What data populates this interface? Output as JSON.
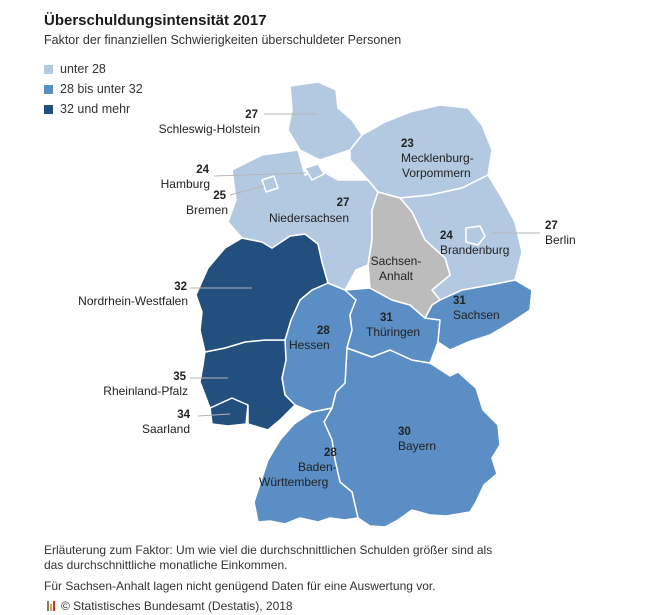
{
  "title": "Überschuldungsintensität 2017",
  "subtitle": "Faktor der finanziellen Schwierigkeiten überschuldeter Personen",
  "legend": [
    {
      "label": "unter 28",
      "color": "#b3c9e1"
    },
    {
      "label": "28 bis unter 32",
      "color": "#5b8ec4"
    },
    {
      "label": "32 und mehr",
      "color": "#234f7f"
    }
  ],
  "no_data_color": "#bcbcbc",
  "states": {
    "sh": {
      "name": "Schleswig-Holstein",
      "value": "27"
    },
    "hh": {
      "name": "Hamburg",
      "value": "24"
    },
    "hb": {
      "name": "Bremen",
      "value": "25"
    },
    "mv": {
      "name_1": "Mecklenburg-",
      "name_2": "Vorpommern",
      "value": "23"
    },
    "ni": {
      "name": "Niedersachsen",
      "value": "27"
    },
    "bb": {
      "name": "Brandenburg",
      "value": "24"
    },
    "be": {
      "name": "Berlin",
      "value": "27"
    },
    "st": {
      "name_1": "Sachsen-",
      "name_2": "Anhalt"
    },
    "nw": {
      "name": "Nordrhein-Westfalen",
      "value": "32"
    },
    "sn": {
      "name": "Sachsen",
      "value": "31"
    },
    "th": {
      "name": "Thüringen",
      "value": "31"
    },
    "he": {
      "name": "Hessen",
      "value": "28"
    },
    "rp": {
      "name": "Rheinland-Pfalz",
      "value": "35"
    },
    "sl": {
      "name": "Saarland",
      "value": "34"
    },
    "by": {
      "name": "Bayern",
      "value": "30"
    },
    "bw": {
      "name_1": "Baden-",
      "name_2": "Württemberg",
      "value": "28"
    }
  },
  "notes": {
    "factor": "Erläuterung zum Faktor: Um wie viel die durchschnittlichen Schulden größer sind als das durchschnittliche monatliche Einkommen.",
    "sachsen_anhalt": "Für Sachsen-Anhalt lagen nicht genügend Daten für eine Auswertung vor."
  },
  "source": "© Statistisches Bundesamt (Destatis), 2018"
}
